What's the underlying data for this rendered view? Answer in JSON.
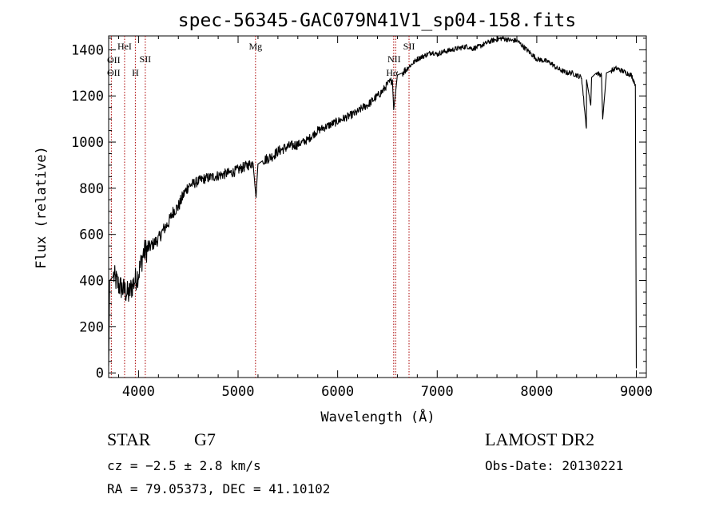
{
  "chart_data": {
    "type": "line",
    "title": "spec-56345-GAC079N41V1_sp04-158.fits",
    "xlabel": "Wavelength (Å)",
    "ylabel": "Flux (relative)",
    "xlim": [
      3700,
      9100
    ],
    "ylim": [
      -20,
      1460
    ],
    "xticks": [
      4000,
      5000,
      6000,
      7000,
      8000,
      9000
    ],
    "xtick_labels": [
      "4000",
      "5000",
      "6000",
      "7000",
      "8000",
      "9000"
    ],
    "yticks": [
      0,
      200,
      400,
      600,
      800,
      1000,
      1200,
      1400
    ],
    "ytick_labels": [
      "0",
      "200",
      "400",
      "600",
      "800",
      "1000",
      "1200",
      "1400"
    ],
    "grid": false,
    "series": [
      {
        "name": "flux",
        "x": [
          3700,
          3710,
          3750,
          3800,
          3850,
          3900,
          3950,
          4000,
          4050,
          4100,
          4150,
          4200,
          4250,
          4300,
          4350,
          4400,
          4450,
          4500,
          4550,
          4600,
          4650,
          4700,
          4750,
          4800,
          4850,
          4900,
          4950,
          5000,
          5050,
          5100,
          5150,
          5180,
          5200,
          5250,
          5300,
          5350,
          5400,
          5450,
          5500,
          5550,
          5600,
          5650,
          5700,
          5750,
          5800,
          5850,
          5900,
          5950,
          6000,
          6050,
          6100,
          6150,
          6200,
          6250,
          6300,
          6350,
          6400,
          6450,
          6500,
          6550,
          6563,
          6600,
          6650,
          6700,
          6750,
          6800,
          6850,
          6900,
          6950,
          7000,
          7050,
          7100,
          7150,
          7200,
          7250,
          7300,
          7350,
          7400,
          7450,
          7500,
          7550,
          7600,
          7650,
          7700,
          7750,
          7800,
          7850,
          7900,
          7950,
          8000,
          8050,
          8100,
          8150,
          8200,
          8250,
          8300,
          8350,
          8400,
          8450,
          8498,
          8500,
          8542,
          8550,
          8600,
          8650,
          8662,
          8700,
          8750,
          8800,
          8850,
          8900,
          8950,
          8990,
          9000
        ],
        "y": [
          30,
          400,
          420,
          380,
          360,
          340,
          390,
          430,
          520,
          540,
          560,
          580,
          620,
          650,
          700,
          720,
          770,
          810,
          820,
          830,
          840,
          845,
          850,
          855,
          860,
          865,
          870,
          880,
          890,
          900,
          910,
          760,
          905,
          920,
          930,
          940,
          960,
          970,
          980,
          985,
          990,
          1000,
          1010,
          1030,
          1050,
          1060,
          1070,
          1080,
          1090,
          1100,
          1110,
          1120,
          1130,
          1150,
          1160,
          1180,
          1200,
          1220,
          1250,
          1270,
          1140,
          1290,
          1300,
          1320,
          1340,
          1360,
          1370,
          1380,
          1390,
          1380,
          1390,
          1395,
          1400,
          1405,
          1410,
          1415,
          1405,
          1410,
          1420,
          1430,
          1440,
          1445,
          1450,
          1445,
          1440,
          1440,
          1420,
          1400,
          1380,
          1360,
          1355,
          1350,
          1340,
          1320,
          1310,
          1300,
          1300,
          1290,
          1280,
          1060,
          1270,
          1160,
          1280,
          1300,
          1290,
          1100,
          1300,
          1310,
          1320,
          1310,
          1300,
          1290,
          1250,
          20
        ]
      }
    ],
    "lines": [
      {
        "name": "OII",
        "x": 3727,
        "label": "OII",
        "secondary": ""
      },
      {
        "name": "OIII-K",
        "x": 3860,
        "label": "HeI",
        "secondary": "OII"
      },
      {
        "name": "CaH",
        "x": 3968,
        "label": "",
        "secondary": "H"
      },
      {
        "name": "SII-4068",
        "x": 4068,
        "label": "SII",
        "secondary": ""
      },
      {
        "name": "Mg",
        "x": 5175,
        "label": "Mg",
        "secondary": ""
      },
      {
        "name": "NII",
        "x": 6583,
        "label": "NII",
        "secondary": ""
      },
      {
        "name": "Halpha",
        "x": 6563,
        "label": "Hα",
        "secondary": ""
      },
      {
        "name": "SII-6717",
        "x": 6717,
        "label": "SII",
        "secondary": ""
      }
    ],
    "line_color": "#aa0000"
  },
  "info": {
    "class": "STAR",
    "subclass": "G7",
    "redshift": "cz = −2.5 ± 2.8 km/s",
    "coords": "RA =  79.05373, DEC =  41.10102",
    "survey": "LAMOST DR2",
    "obs_date": "Obs-Date: 20130221"
  }
}
